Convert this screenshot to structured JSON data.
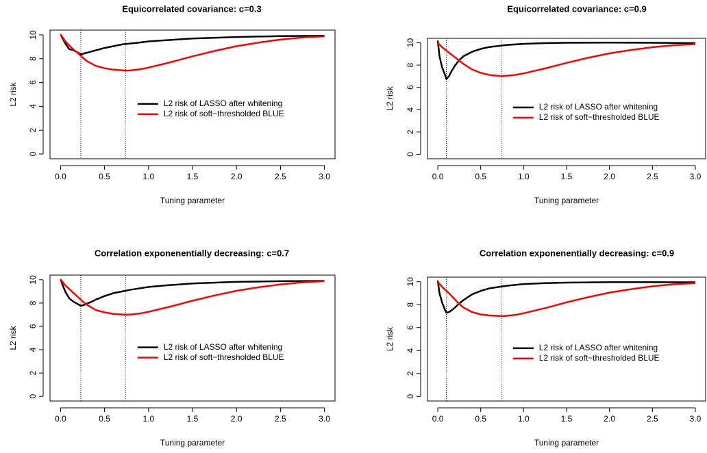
{
  "chart_data": [
    {
      "type": "line",
      "title": "Equicorrelated covariance: c=0.3",
      "xlabel": "Tuning parameter",
      "ylabel": "L2 risk",
      "xlim": [
        0,
        3
      ],
      "ylim": [
        0,
        10
      ],
      "xticks": [
        "0.0",
        "0.5",
        "1.0",
        "1.5",
        "2.0",
        "2.5",
        "3.0"
      ],
      "yticks": [
        "0",
        "2",
        "4",
        "6",
        "8",
        "10"
      ],
      "legend_position": "center-right",
      "vlines": [
        {
          "x": 0.23,
          "color": "#000000",
          "style": "dotted"
        },
        {
          "x": 0.74,
          "color": "#ff0000",
          "style": "dotted"
        }
      ],
      "series": [
        {
          "name": "L2 risk of LASSO after whitening",
          "color": "#000000",
          "x": [
            0,
            0.03,
            0.06,
            0.1,
            0.15,
            0.2,
            0.24,
            0.27,
            0.3,
            0.35,
            0.4,
            0.5,
            0.6,
            0.7,
            0.8,
            0.9,
            1.0,
            1.2,
            1.5,
            2.0,
            2.5,
            3.0
          ],
          "y": [
            10.05,
            9.6,
            9.2,
            8.8,
            8.7,
            8.5,
            8.35,
            8.45,
            8.5,
            8.6,
            8.7,
            8.9,
            9.05,
            9.2,
            9.28,
            9.36,
            9.45,
            9.55,
            9.7,
            9.82,
            9.9,
            9.93
          ]
        },
        {
          "name": "L2 risk of soft−thresholded BLUE",
          "color": "#ff0000",
          "x": [
            0,
            0.05,
            0.1,
            0.15,
            0.2,
            0.25,
            0.3,
            0.4,
            0.5,
            0.6,
            0.7,
            0.75,
            0.8,
            0.9,
            1.0,
            1.25,
            1.5,
            1.75,
            2.0,
            2.25,
            2.5,
            2.75,
            3.0
          ],
          "y": [
            10.05,
            9.5,
            9.1,
            8.75,
            8.45,
            8.1,
            7.8,
            7.4,
            7.2,
            7.08,
            7.02,
            7.0,
            7.02,
            7.1,
            7.25,
            7.7,
            8.2,
            8.65,
            9.05,
            9.35,
            9.6,
            9.78,
            9.88
          ]
        }
      ]
    },
    {
      "type": "line",
      "title": "Equicorrelated covariance: c=0.9",
      "xlabel": "Tuning parameter",
      "ylabel": "L2 risk",
      "xlim": [
        0,
        3
      ],
      "ylim": [
        0,
        10
      ],
      "xticks": [
        "0.0",
        "0.5",
        "1.0",
        "1.5",
        "2.0",
        "2.5",
        "3.0"
      ],
      "yticks": [
        "0",
        "2",
        "4",
        "6",
        "8",
        "10"
      ],
      "legend_position": "center-right",
      "vlines": [
        {
          "x": 0.1,
          "color": "#000000",
          "style": "dotted"
        },
        {
          "x": 0.74,
          "color": "#ff0000",
          "style": "dotted"
        }
      ],
      "series": [
        {
          "name": "L2 risk of LASSO after whitening",
          "color": "#000000",
          "x": [
            0,
            0.02,
            0.05,
            0.08,
            0.1,
            0.13,
            0.16,
            0.2,
            0.25,
            0.3,
            0.4,
            0.5,
            0.6,
            0.8,
            1.0,
            1.25,
            1.5,
            2.0,
            2.5,
            3.0
          ],
          "y": [
            10.2,
            8.8,
            7.8,
            7.2,
            6.75,
            7.0,
            7.45,
            7.95,
            8.45,
            8.8,
            9.2,
            9.45,
            9.62,
            9.8,
            9.9,
            9.97,
            10.0,
            10.02,
            10.0,
            9.97
          ]
        },
        {
          "name": "L2 risk of soft−thresholded BLUE",
          "color": "#ff0000",
          "x": [
            0,
            0.05,
            0.1,
            0.15,
            0.2,
            0.25,
            0.3,
            0.4,
            0.5,
            0.6,
            0.7,
            0.75,
            0.8,
            0.9,
            1.0,
            1.25,
            1.5,
            1.75,
            2.0,
            2.25,
            2.5,
            2.75,
            3.0
          ],
          "y": [
            10.0,
            9.6,
            9.3,
            9.0,
            8.7,
            8.4,
            8.1,
            7.6,
            7.3,
            7.12,
            7.04,
            7.02,
            7.04,
            7.12,
            7.25,
            7.7,
            8.2,
            8.65,
            9.05,
            9.35,
            9.6,
            9.78,
            9.88
          ]
        }
      ]
    },
    {
      "type": "line",
      "title": "Correlation exponenentially decreasing: c=0.7",
      "xlabel": "Tuning parameter",
      "ylabel": "L2 risk",
      "xlim": [
        0,
        3
      ],
      "ylim": [
        0,
        10
      ],
      "xticks": [
        "0.0",
        "0.5",
        "1.0",
        "1.5",
        "2.0",
        "2.5",
        "3.0"
      ],
      "yticks": [
        "0",
        "2",
        "4",
        "6",
        "8",
        "10"
      ],
      "legend_position": "center-right",
      "vlines": [
        {
          "x": 0.23,
          "color": "#000000",
          "style": "dotted"
        },
        {
          "x": 0.74,
          "color": "#ff0000",
          "style": "dotted"
        }
      ],
      "series": [
        {
          "name": "L2 risk of LASSO after whitening",
          "color": "#000000",
          "x": [
            0,
            0.03,
            0.06,
            0.1,
            0.15,
            0.2,
            0.23,
            0.27,
            0.3,
            0.35,
            0.4,
            0.5,
            0.6,
            0.7,
            0.8,
            1.0,
            1.2,
            1.5,
            2.0,
            2.5,
            3.0
          ],
          "y": [
            10.05,
            9.4,
            8.9,
            8.4,
            8.1,
            7.9,
            7.75,
            7.85,
            7.95,
            8.1,
            8.3,
            8.6,
            8.85,
            9.0,
            9.15,
            9.38,
            9.52,
            9.68,
            9.82,
            9.88,
            9.9
          ]
        },
        {
          "name": "L2 risk of soft−thresholded BLUE",
          "color": "#ff0000",
          "x": [
            0,
            0.05,
            0.1,
            0.15,
            0.2,
            0.25,
            0.3,
            0.4,
            0.5,
            0.6,
            0.7,
            0.75,
            0.8,
            0.9,
            1.0,
            1.25,
            1.5,
            1.75,
            2.0,
            2.25,
            2.5,
            2.75,
            3.0
          ],
          "y": [
            10.05,
            9.55,
            9.2,
            8.85,
            8.5,
            8.15,
            7.85,
            7.4,
            7.2,
            7.08,
            7.02,
            7.0,
            7.02,
            7.1,
            7.25,
            7.7,
            8.2,
            8.65,
            9.05,
            9.35,
            9.6,
            9.78,
            9.88
          ]
        }
      ]
    },
    {
      "type": "line",
      "title": "Correlation exponenentially decreasing: c=0.9",
      "xlabel": "Tuning parameter",
      "ylabel": "L2 risk",
      "xlim": [
        0,
        3
      ],
      "ylim": [
        0,
        10
      ],
      "xticks": [
        "0.0",
        "0.5",
        "1.0",
        "1.5",
        "2.0",
        "2.5",
        "3.0"
      ],
      "yticks": [
        "0",
        "2",
        "4",
        "6",
        "8",
        "10"
      ],
      "legend_position": "center-right",
      "vlines": [
        {
          "x": 0.1,
          "color": "#000000",
          "style": "dotted"
        },
        {
          "x": 0.74,
          "color": "#ff0000",
          "style": "dotted"
        }
      ],
      "series": [
        {
          "name": "L2 risk of LASSO after whitening",
          "color": "#000000",
          "x": [
            0,
            0.02,
            0.05,
            0.08,
            0.1,
            0.13,
            0.16,
            0.2,
            0.25,
            0.3,
            0.4,
            0.5,
            0.6,
            0.8,
            1.0,
            1.25,
            1.5,
            2.0,
            2.5,
            3.0
          ],
          "y": [
            10.1,
            9.0,
            8.2,
            7.6,
            7.3,
            7.35,
            7.5,
            7.75,
            8.1,
            8.4,
            8.9,
            9.2,
            9.42,
            9.65,
            9.8,
            9.88,
            9.92,
            9.96,
            9.96,
            9.95
          ]
        },
        {
          "name": "L2 risk of soft−thresholded BLUE",
          "color": "#ff0000",
          "x": [
            0,
            0.05,
            0.1,
            0.15,
            0.2,
            0.25,
            0.3,
            0.4,
            0.5,
            0.6,
            0.7,
            0.75,
            0.8,
            0.9,
            1.0,
            1.25,
            1.5,
            1.75,
            2.0,
            2.25,
            2.5,
            2.75,
            3.0
          ],
          "y": [
            10.0,
            9.55,
            9.2,
            8.85,
            8.45,
            8.05,
            7.75,
            7.35,
            7.15,
            7.06,
            7.02,
            7.0,
            7.03,
            7.1,
            7.25,
            7.7,
            8.2,
            8.65,
            9.05,
            9.35,
            9.6,
            9.78,
            9.88
          ]
        }
      ]
    }
  ]
}
